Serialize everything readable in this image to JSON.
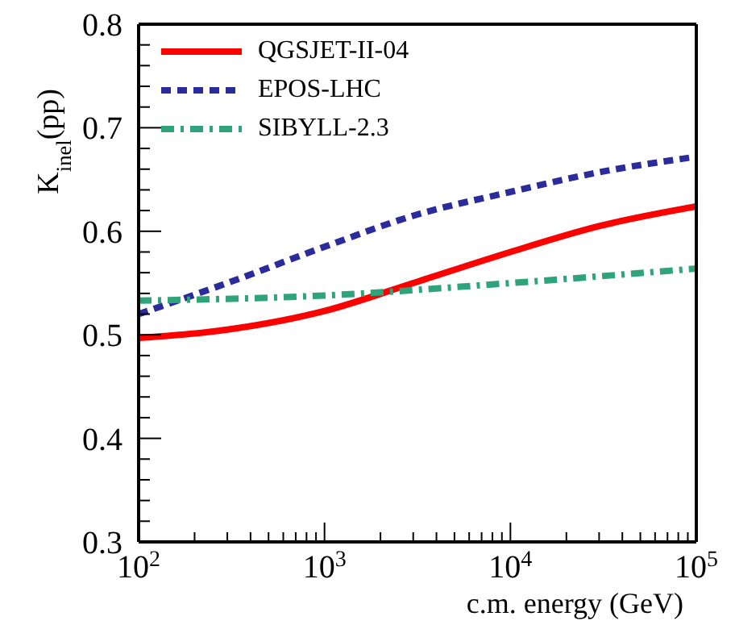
{
  "chart_data": {
    "type": "line",
    "xlabel": "c.m. energy (GeV)",
    "ylabel": "K$_{inel}$(pp)",
    "log": "x",
    "grid": false,
    "legend": "top left",
    "marker": "none",
    "xlim": [
      100,
      100000
    ],
    "xticks": [
      {
        "value": 100,
        "label": "10$^{2}$"
      },
      {
        "value": 200,
        "label": null
      },
      {
        "value": 300,
        "label": null
      },
      {
        "value": 400,
        "label": null
      },
      {
        "value": 500,
        "label": null
      },
      {
        "value": 600,
        "label": null
      },
      {
        "value": 700,
        "label": null
      },
      {
        "value": 800,
        "label": null
      },
      {
        "value": 900,
        "label": null
      },
      {
        "value": 1000,
        "label": "10$^{3}$"
      },
      {
        "value": 2000,
        "label": null
      },
      {
        "value": 3000,
        "label": null
      },
      {
        "value": 4000,
        "label": null
      },
      {
        "value": 5000,
        "label": null
      },
      {
        "value": 6000,
        "label": null
      },
      {
        "value": 7000,
        "label": null
      },
      {
        "value": 8000,
        "label": null
      },
      {
        "value": 9000,
        "label": null
      },
      {
        "value": 10000,
        "label": "10$^{4}$"
      },
      {
        "value": 20000,
        "label": null
      },
      {
        "value": 30000,
        "label": null
      },
      {
        "value": 40000,
        "label": null
      },
      {
        "value": 50000,
        "label": null
      },
      {
        "value": 60000,
        "label": null
      },
      {
        "value": 70000,
        "label": null
      },
      {
        "value": 80000,
        "label": null
      },
      {
        "value": 90000,
        "label": null
      },
      {
        "value": 100000,
        "label": "10$^{5}$"
      }
    ],
    "ylim": [
      0.3,
      0.8
    ],
    "yticks": [
      0.3,
      {
        "value": 0.32,
        "label": null
      },
      {
        "value": 0.34,
        "label": null
      },
      {
        "value": 0.36,
        "label": null
      },
      {
        "value": 0.38,
        "label": null
      },
      0.4,
      {
        "value": 0.42,
        "label": null
      },
      {
        "value": 0.44,
        "label": null
      },
      {
        "value": 0.46,
        "label": null
      },
      {
        "value": 0.48,
        "label": null
      },
      0.5,
      {
        "value": 0.52,
        "label": null
      },
      {
        "value": 0.54,
        "label": null
      },
      {
        "value": 0.56,
        "label": null
      },
      {
        "value": 0.58,
        "label": null
      },
      0.6,
      {
        "value": 0.62,
        "label": null
      },
      {
        "value": 0.64,
        "label": null
      },
      {
        "value": 0.66,
        "label": null
      },
      {
        "value": 0.68,
        "label": null
      },
      0.7,
      {
        "value": 0.72,
        "label": null
      },
      {
        "value": 0.74,
        "label": null
      },
      {
        "value": 0.76,
        "label": null
      },
      {
        "value": 0.78,
        "label": null
      },
      0.8
    ],
    "series": [
      {
        "name": "QGSJET-II-04",
        "color": "#ff0000",
        "line_style": "solid",
        "x": [
          100,
          300,
          1000,
          3000,
          10000,
          30000,
          100000
        ],
        "values": [
          0.497,
          0.505,
          0.523,
          0.55,
          0.58,
          0.605,
          0.624
        ]
      },
      {
        "name": "EPOS-LHC",
        "color": "#2b2b9c",
        "line_style": "dashed",
        "x": [
          100,
          300,
          1000,
          3000,
          10000,
          30000,
          100000
        ],
        "values": [
          0.52,
          0.55,
          0.585,
          0.615,
          0.638,
          0.657,
          0.672
        ]
      },
      {
        "name": "SIBYLL-2.3",
        "color": "#2fa37a",
        "line_style": "dashdot",
        "x": [
          100,
          1000,
          10000,
          100000
        ],
        "values": [
          0.533,
          0.538,
          0.55,
          0.564
        ]
      }
    ]
  }
}
